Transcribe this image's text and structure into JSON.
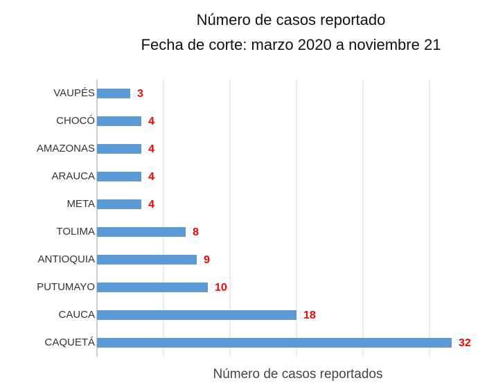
{
  "chart_data": {
    "type": "hbar",
    "title": "Número de casos reportado",
    "subtitle": "Fecha de corte: marzo 2020 a noviembre 21",
    "xlabel": "Número de casos reportados",
    "categories": [
      "VAUPÉS",
      "CHOCÓ",
      "AMAZONAS",
      "ARAUCA",
      "META",
      "TOLIMA",
      "ANTIOQUIA",
      "PUTUMAYO",
      "CAUCA",
      "CAQUETÁ"
    ],
    "values": [
      3,
      4,
      4,
      4,
      4,
      8,
      9,
      10,
      18,
      32
    ],
    "color": "#5b9bd5",
    "label_color": "#ff0000",
    "xlim": [
      0,
      34.375
    ],
    "xticks": [
      0,
      6,
      12,
      18,
      24,
      30
    ],
    "grid": true
  }
}
